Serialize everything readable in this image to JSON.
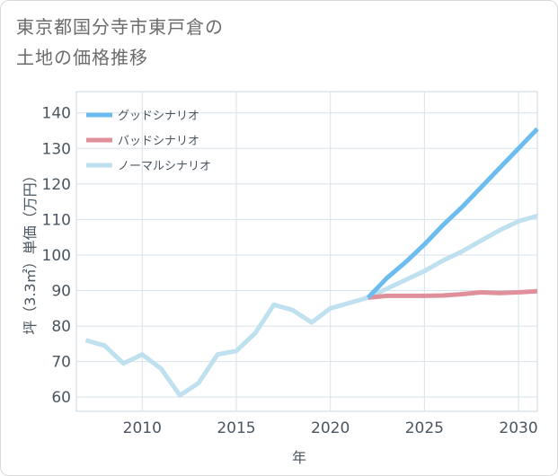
{
  "title": {
    "line1": "東京都国分寺市東戸倉の",
    "line2": "土地の価格推移"
  },
  "chart_data": {
    "type": "line",
    "xlabel": "年",
    "ylabel": "坪（3.3㎡）単価（万円）",
    "xlim": [
      2006.5,
      2031
    ],
    "ylim": [
      56,
      146
    ],
    "x_ticks": [
      2010,
      2015,
      2020,
      2025,
      2030
    ],
    "y_ticks": [
      60,
      70,
      80,
      90,
      100,
      110,
      120,
      130,
      140
    ],
    "grid": true,
    "legend_position": "top-left",
    "series": [
      {
        "name": "グッドシナリオ",
        "color": "#6cbcef",
        "x": [
          2022,
          2023,
          2024,
          2025,
          2026,
          2027,
          2028,
          2029,
          2030,
          2031
        ],
        "values": [
          88,
          93.5,
          98,
          103,
          108.5,
          113.5,
          119,
          124.5,
          130,
          135.5
        ]
      },
      {
        "name": "バッドシナリオ",
        "color": "#e0909a",
        "x": [
          2022,
          2023,
          2024,
          2025,
          2026,
          2027,
          2028,
          2029,
          2030,
          2031
        ],
        "values": [
          88,
          88.5,
          88.5,
          88.5,
          88.6,
          89,
          89.5,
          89.3,
          89.5,
          89.8
        ]
      },
      {
        "name": "ノーマルシナリオ",
        "color": "#bfe0ee",
        "x": [
          2007,
          2008,
          2009,
          2010,
          2011,
          2012,
          2013,
          2014,
          2015,
          2016,
          2017,
          2018,
          2019,
          2020,
          2021,
          2022,
          2023,
          2024,
          2025,
          2026,
          2027,
          2028,
          2029,
          2030,
          2031
        ],
        "values": [
          76,
          74.5,
          69.5,
          72,
          68,
          60.5,
          64,
          72,
          73,
          78,
          86,
          84.5,
          81,
          85,
          86.5,
          88,
          90.5,
          93,
          95.5,
          98.5,
          101,
          104,
          107,
          109.5,
          111
        ]
      }
    ]
  }
}
